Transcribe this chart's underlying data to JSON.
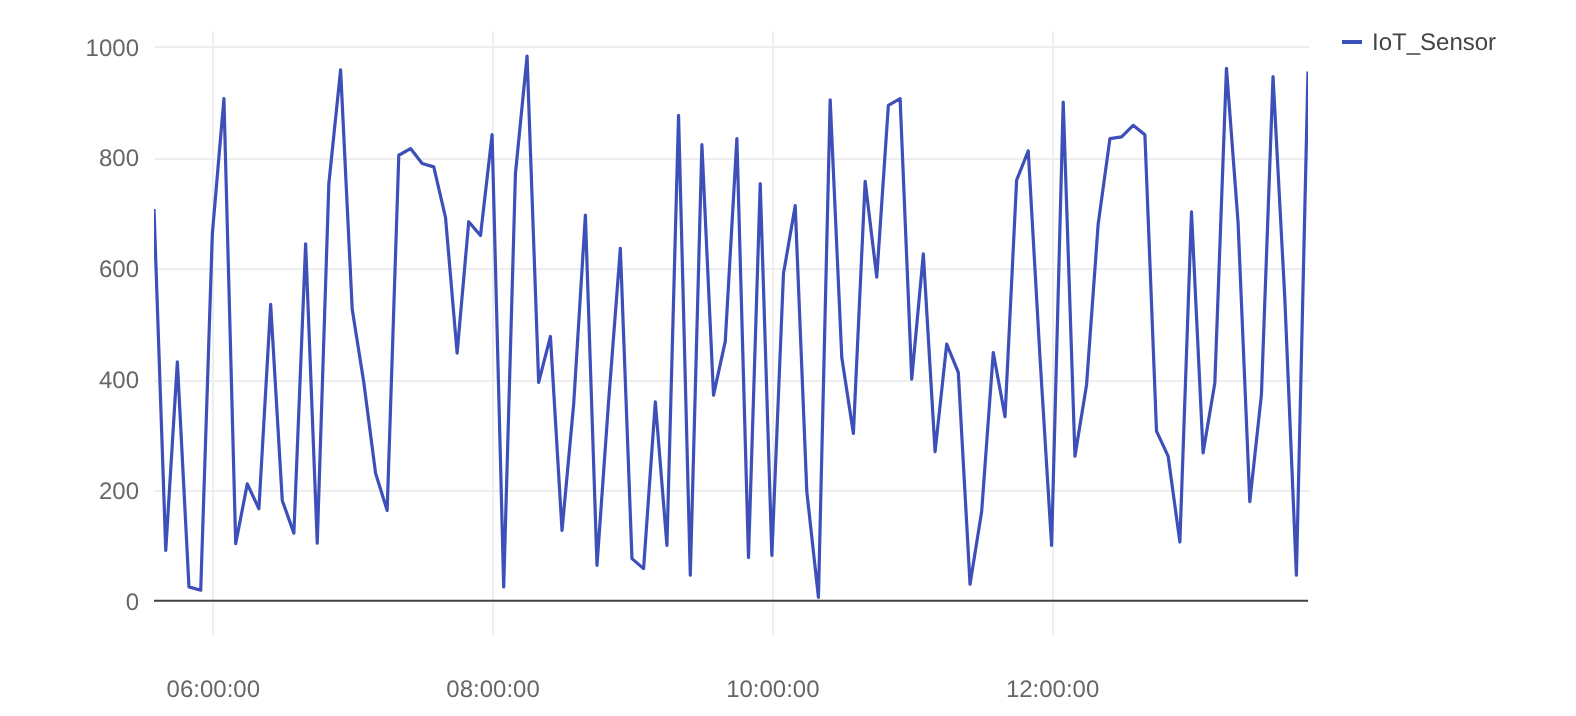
{
  "chart_data": {
    "type": "line",
    "x": [
      5.583,
      5.667,
      5.75,
      5.833,
      5.917,
      6.0,
      6.083,
      6.167,
      6.25,
      6.333,
      6.417,
      6.5,
      6.583,
      6.667,
      6.75,
      6.833,
      6.917,
      7.0,
      7.083,
      7.167,
      7.25,
      7.333,
      7.417,
      7.5,
      7.583,
      7.667,
      7.75,
      7.833,
      7.917,
      8.0,
      8.083,
      8.167,
      8.25,
      8.333,
      8.417,
      8.5,
      8.583,
      8.667,
      8.75,
      8.833,
      8.917,
      9.0,
      9.083,
      9.167,
      9.25,
      9.333,
      9.417,
      9.5,
      9.583,
      9.667,
      9.75,
      9.833,
      9.917,
      10.0,
      10.083,
      10.167,
      10.25,
      10.333,
      10.417,
      10.5,
      10.583,
      10.667,
      10.75,
      10.833,
      10.917,
      11.0,
      11.083,
      11.167,
      11.25,
      11.333,
      11.417,
      11.5,
      11.583,
      11.667,
      11.75,
      11.833,
      11.917,
      12.0,
      12.083,
      12.167,
      12.25,
      12.333,
      12.417,
      12.5,
      12.583,
      12.667,
      12.75,
      12.833,
      12.917,
      13.0,
      13.083,
      13.167,
      13.25,
      13.333,
      13.417,
      13.5,
      13.583,
      13.667,
      13.75,
      13.833
    ],
    "series": [
      {
        "name": "IoT_Sensor",
        "color": "#3d4fb8",
        "values": [
          707,
          91,
          431,
          25,
          19,
          662,
          906,
          103,
          211,
          166,
          535,
          181,
          122,
          644,
          104,
          753,
          958,
          526,
          394,
          230,
          163,
          804,
          816,
          789,
          783,
          692,
          447,
          684,
          659,
          841,
          25,
          771,
          983,
          394,
          477,
          127,
          354,
          696,
          64,
          360,
          636,
          76,
          58,
          359,
          100,
          876,
          46,
          823,
          371,
          468,
          834,
          78,
          753,
          82,
          590,
          713,
          197,
          6,
          904,
          439,
          302,
          757,
          584,
          894,
          906,
          400,
          626,
          269,
          463,
          412,
          30,
          161,
          448,
          332,
          759,
          812,
          439,
          100,
          900,
          261,
          390,
          680,
          834,
          837,
          858,
          841,
          306,
          261,
          106,
          702,
          267,
          393,
          961,
          683,
          179,
          372,
          946,
          547,
          46,
          955
        ]
      }
    ],
    "xlim": [
      5.583,
      13.833
    ],
    "xticks": [
      {
        "value": 6,
        "label": "06:00:00"
      },
      {
        "value": 8,
        "label": "08:00:00"
      },
      {
        "value": 10,
        "label": "10:00:00"
      },
      {
        "value": 12,
        "label": "12:00:00"
      }
    ],
    "ylim": [
      -60,
      1030
    ],
    "yticks": [
      0,
      200,
      400,
      600,
      800,
      1000
    ],
    "ref_lines": [
      {
        "axis": "y",
        "value": 0,
        "color": "#444444"
      }
    ],
    "grid": true,
    "legend": "top right",
    "line_style": "solid",
    "marker": "none"
  }
}
